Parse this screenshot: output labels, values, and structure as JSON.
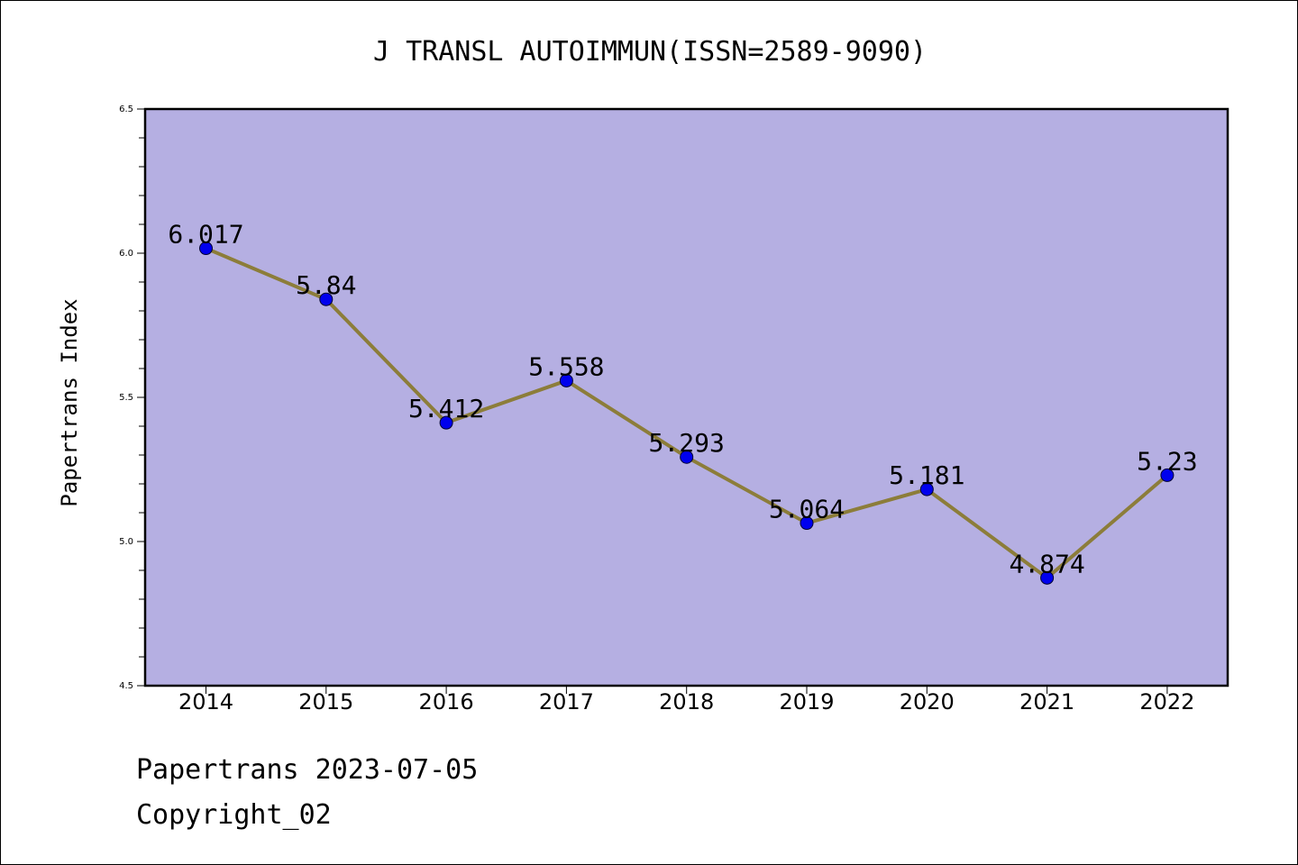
{
  "chart_data": {
    "type": "line",
    "title": "J TRANSL AUTOIMMUN(ISSN=2589-9090)",
    "ylabel": "Papertrans Index",
    "xlabel": "",
    "categories": [
      "2014",
      "2015",
      "2016",
      "2017",
      "2018",
      "2019",
      "2020",
      "2021",
      "2022"
    ],
    "values": [
      6.017,
      5.84,
      5.412,
      5.558,
      5.293,
      5.064,
      5.181,
      4.874,
      5.23
    ],
    "data_labels": [
      "6.017",
      "5.84",
      "5.412",
      "5.558",
      "5.293",
      "5.064",
      "5.181",
      "4.874",
      "5.23"
    ],
    "ylim": [
      4.5,
      6.5
    ],
    "yticks": [
      "4.5",
      "5.0",
      "5.5",
      "6.0",
      "6.5"
    ],
    "grid": false,
    "colors": {
      "plot_background": "#b5afe2",
      "line": "#8c7d3a",
      "marker": "#0000ee"
    }
  },
  "footer": {
    "date_line": "Papertrans 2023-07-05",
    "copyright": "Copyright_02"
  }
}
